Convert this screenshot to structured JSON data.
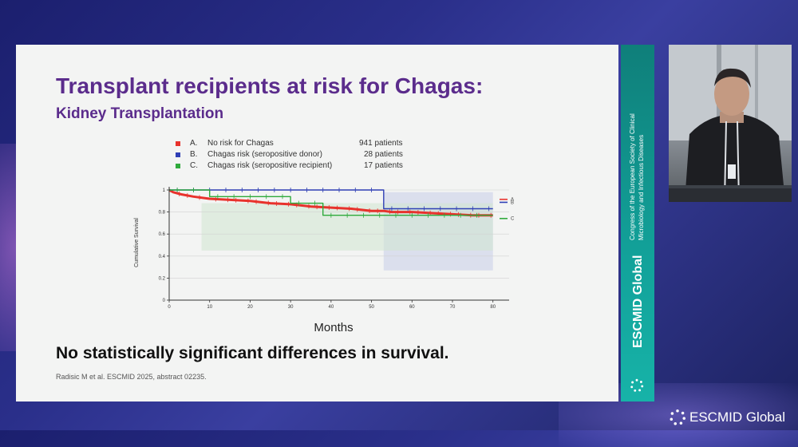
{
  "slide": {
    "title": "Transplant recipients at risk for Chagas:",
    "subtitle": "Kidney Transplantation",
    "conclusion": "No statistically significant differences in survival.",
    "citation": "Radisic M et al. ESCMID 2025, abstract 02235."
  },
  "legend": [
    {
      "letter": "A.",
      "label": "No risk for Chagas",
      "count": "941 patients",
      "color": "#e8322c"
    },
    {
      "letter": "B.",
      "label": "Chagas risk (seropositive donor)",
      "count": "28 patients",
      "color": "#2f3fb5"
    },
    {
      "letter": "C.",
      "label": "Chagas risk (seropositive recipient)",
      "count": "17 patients",
      "color": "#2faa3c"
    }
  ],
  "chart_data": {
    "type": "line",
    "xlabel": "Months",
    "ylabel": "Cumulative Survival",
    "xlim": [
      0,
      84
    ],
    "ylim": [
      0,
      1
    ],
    "xticks": [
      0,
      10,
      20,
      30,
      40,
      50,
      60,
      70,
      80
    ],
    "yticks": [
      0,
      0.2,
      0.4,
      0.6,
      0.8,
      1
    ],
    "series": [
      {
        "name": "A",
        "color": "#e8322c",
        "x": [
          0,
          1,
          3,
          6,
          10,
          15,
          20,
          25,
          30,
          35,
          40,
          45,
          50,
          53,
          55,
          60,
          65,
          70,
          75,
          80
        ],
        "y": [
          1,
          0.98,
          0.96,
          0.94,
          0.92,
          0.91,
          0.9,
          0.88,
          0.87,
          0.85,
          0.84,
          0.83,
          0.81,
          0.81,
          0.8,
          0.8,
          0.79,
          0.78,
          0.77,
          0.77
        ]
      },
      {
        "name": "B",
        "color": "#2f3fb5",
        "x": [
          0,
          53,
          53,
          80
        ],
        "y": [
          1,
          1,
          0.83,
          0.83
        ]
      },
      {
        "name": "C",
        "color": "#2faa3c",
        "x": [
          0,
          10,
          10,
          30,
          30,
          38,
          38,
          80
        ],
        "y": [
          1,
          1,
          0.94,
          0.94,
          0.88,
          0.88,
          0.77,
          0.77
        ]
      }
    ]
  },
  "banner": {
    "congress_line1": "Congress of the European Society of Clinical",
    "congress_line2": "Microbiology and Infectious Diseases",
    "brand": "ESCMID Global"
  },
  "brand_bottom": "ESCMID Global"
}
